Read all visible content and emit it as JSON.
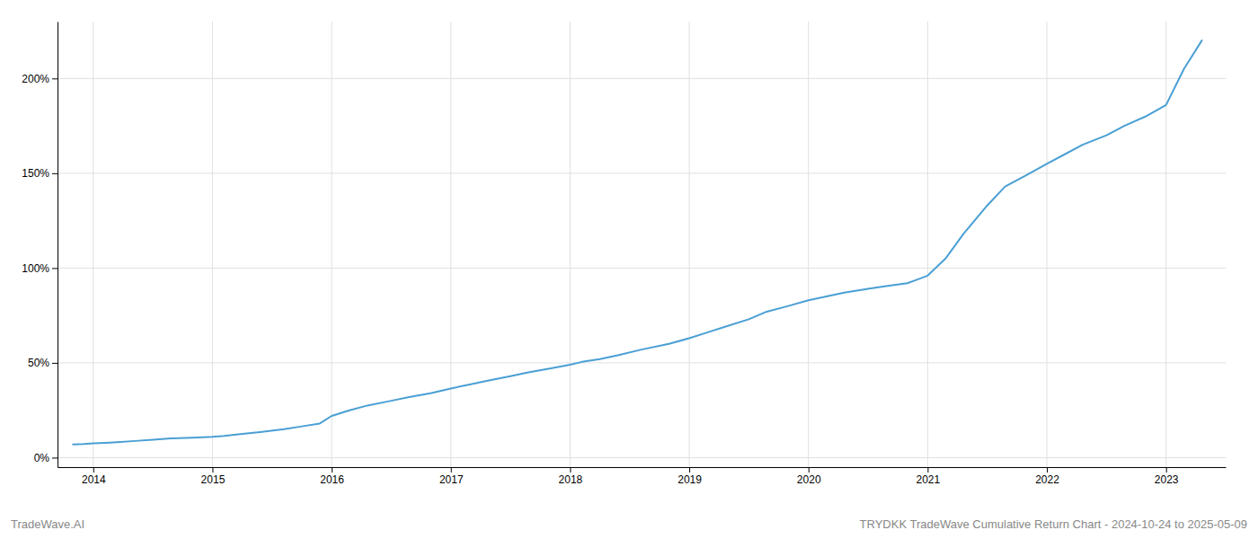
{
  "chart_data": {
    "type": "line",
    "title": "TRYDKK TradeWave Cumulative Return Chart - 2024-10-24 to 2025-05-09",
    "annotations": [
      "TradeWave.AI"
    ],
    "color": "#4a9fd4",
    "x": [
      2013.83,
      2013.92,
      2014.0,
      2014.1,
      2014.2,
      2014.35,
      2014.5,
      2014.65,
      2014.83,
      2015.0,
      2015.1,
      2015.25,
      2015.4,
      2015.6,
      2015.75,
      2015.9,
      2016.0,
      2016.15,
      2016.3,
      2016.5,
      2016.65,
      2016.83,
      2017.0,
      2017.15,
      2017.3,
      2017.5,
      2017.65,
      2017.83,
      2018.0,
      2018.1,
      2018.25,
      2018.4,
      2018.6,
      2018.83,
      2019.0,
      2019.15,
      2019.3,
      2019.5,
      2019.65,
      2019.83,
      2020.0,
      2020.15,
      2020.3,
      2020.5,
      2020.65,
      2020.83,
      2021.0,
      2021.15,
      2021.3,
      2021.5,
      2021.65,
      2021.83,
      2022.0,
      2022.15,
      2022.3,
      2022.5,
      2022.65,
      2022.83,
      2023.0,
      2023.15,
      2023.3
    ],
    "values": [
      7,
      7.2,
      7.5,
      7.8,
      8.2,
      8.8,
      9.5,
      10.2,
      10.5,
      11.0,
      11.5,
      12.5,
      13.5,
      15.0,
      16.5,
      18.0,
      22.0,
      25.0,
      27.5,
      30.0,
      32.0,
      34.0,
      36.5,
      38.5,
      40.5,
      43.0,
      45.0,
      47.0,
      49.0,
      50.5,
      52.0,
      54.0,
      57.0,
      60.0,
      63.0,
      66.0,
      69.0,
      73.0,
      77.0,
      80.0,
      83.0,
      85.0,
      87.0,
      89.0,
      90.5,
      92.0,
      96.0,
      105.0,
      118.0,
      133.0,
      143.0,
      149.0,
      155.0,
      160.0,
      165.0,
      170.0,
      175.0,
      180.0,
      186.0,
      205.0,
      220.0
    ],
    "xlim": [
      2013.7,
      2023.5
    ],
    "xticks": [
      2014,
      2015,
      2016,
      2017,
      2018,
      2019,
      2020,
      2021,
      2022,
      2023
    ],
    "ylim": [
      -5,
      230
    ],
    "yticks": [
      {
        "value": 0,
        "label": "0%"
      },
      {
        "value": 50,
        "label": "50%"
      },
      {
        "value": 100,
        "label": "100%"
      },
      {
        "value": 150,
        "label": "150%"
      },
      {
        "value": 200,
        "label": "200%"
      }
    ],
    "grid": true
  }
}
